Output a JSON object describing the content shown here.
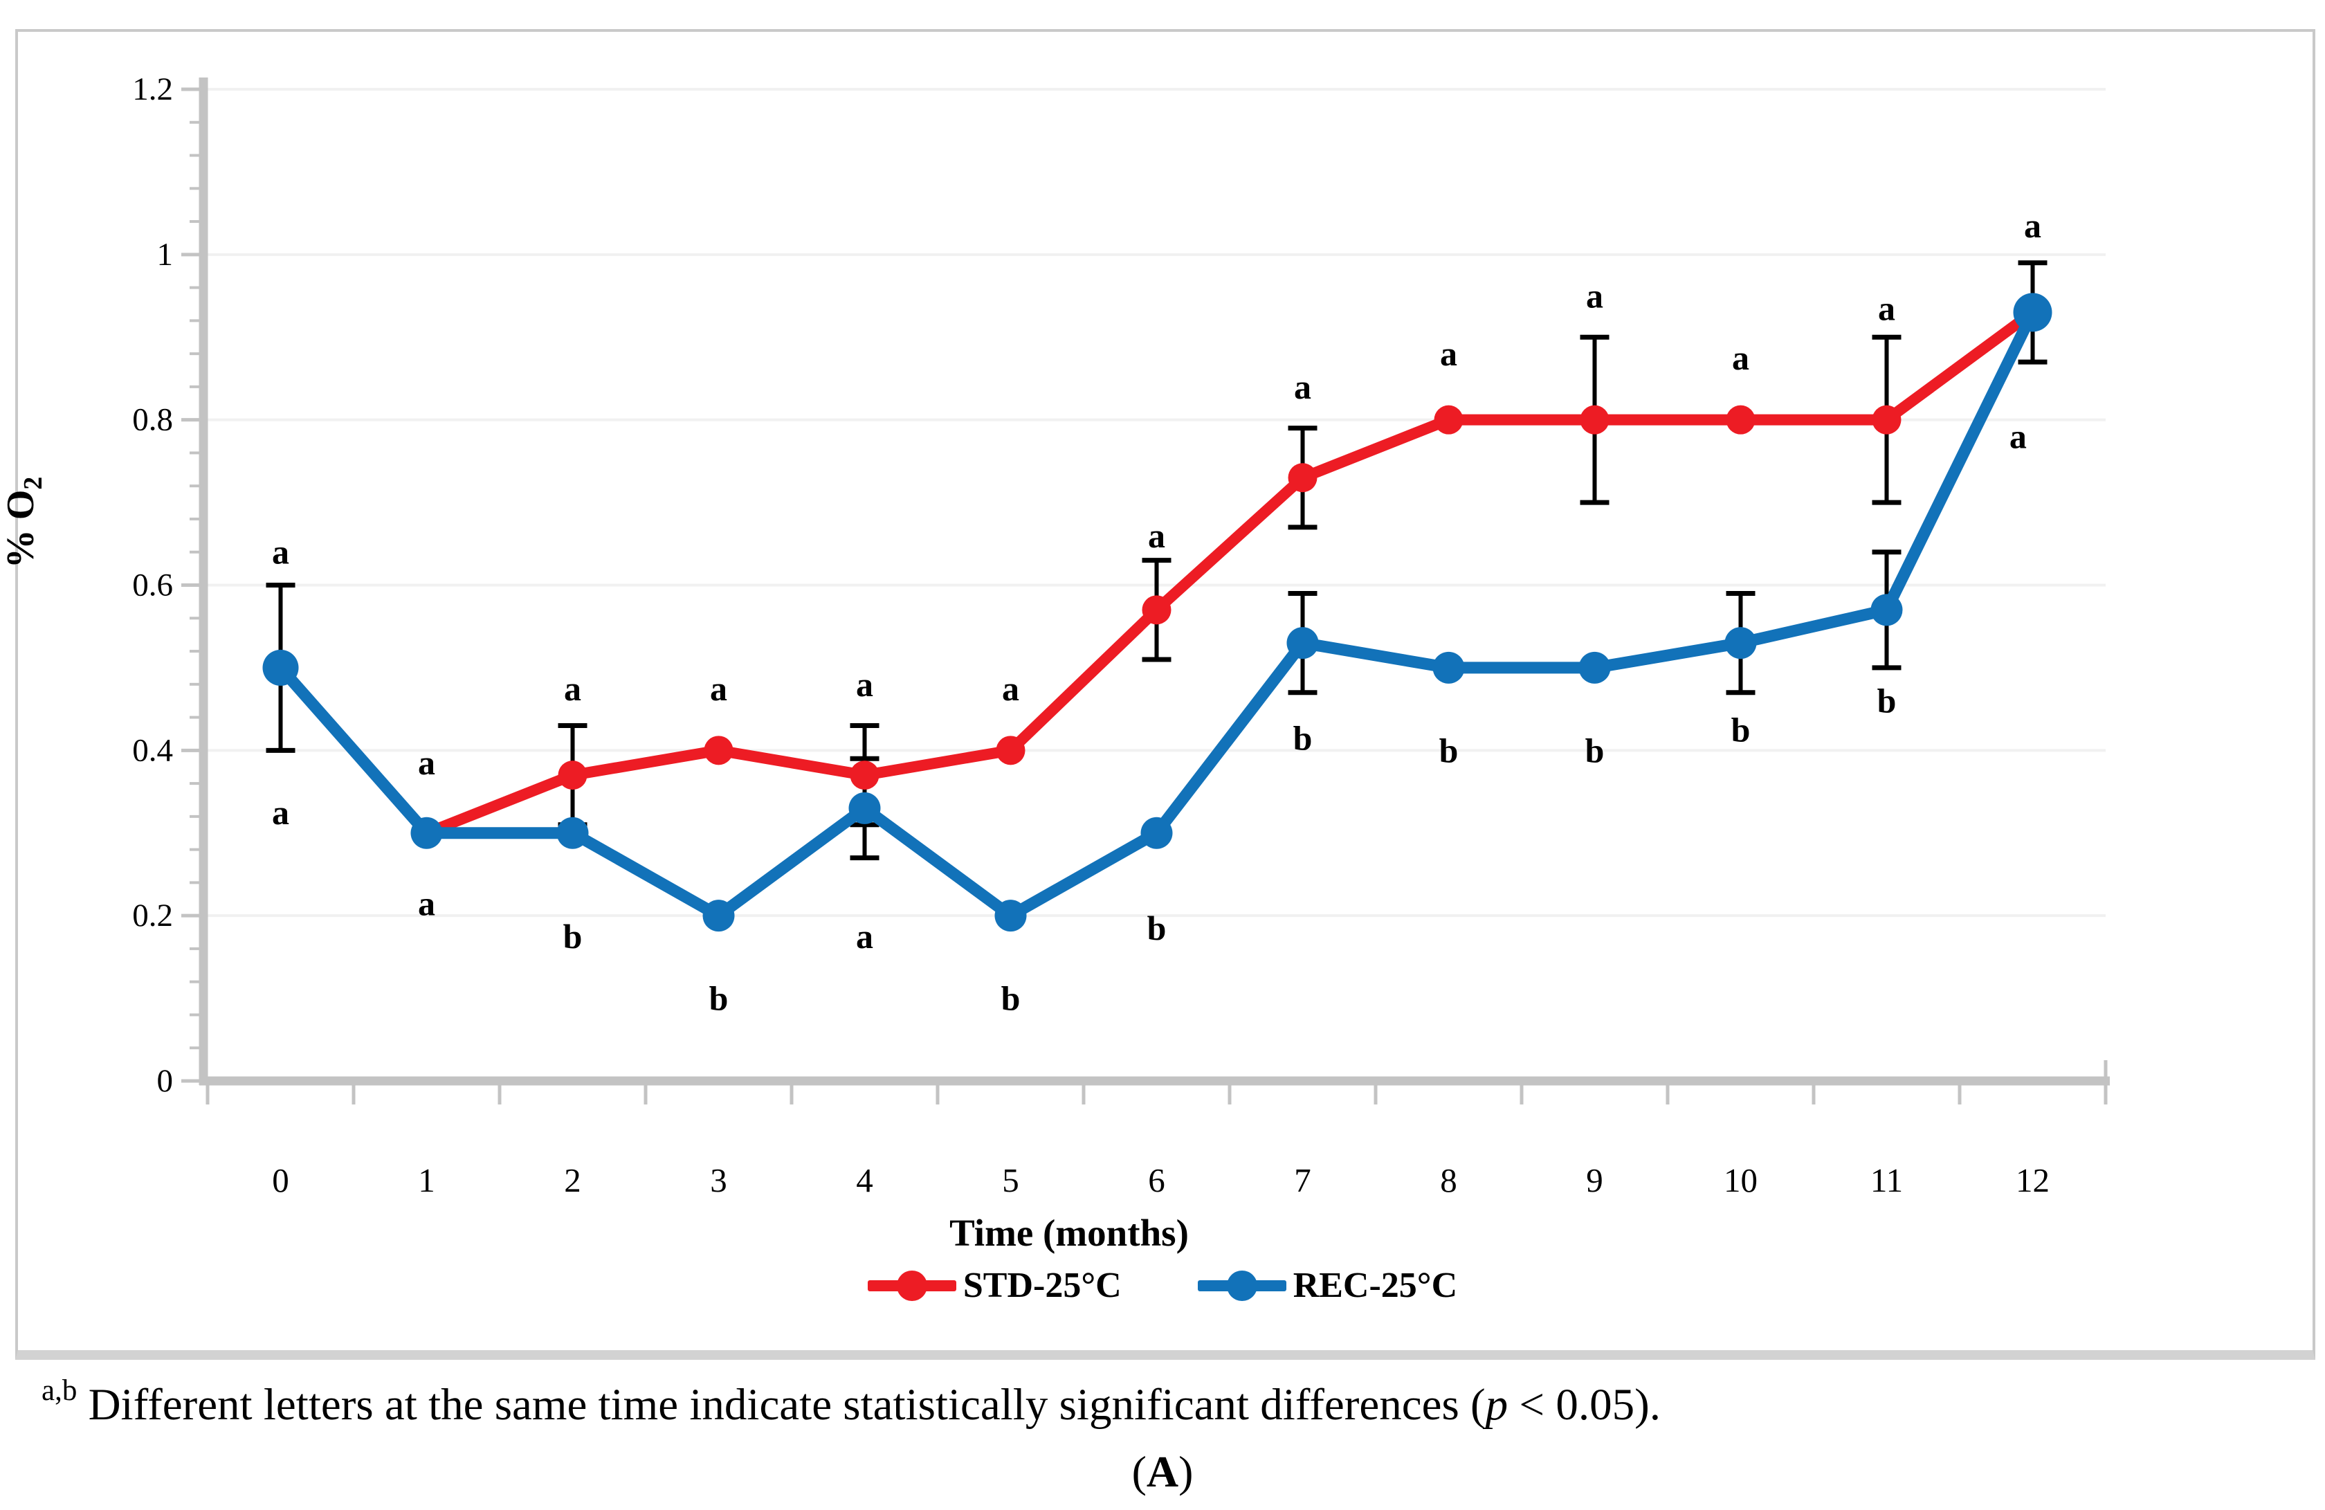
{
  "figure": {
    "caption": {
      "sup": "a,b",
      "body": " Different letters at the same time indicate statistically significant differences (",
      "pvar": "p",
      "tail": " < 0.05)."
    },
    "panel_label": {
      "open": "(",
      "letter": "A",
      "close": ")"
    }
  },
  "chart_data": {
    "type": "line",
    "title": "",
    "xlabel": "Time (months)",
    "ylabel": "% O2",
    "ylabel_main": "% O",
    "ylabel_sub": "2",
    "categories": [
      0,
      1,
      2,
      3,
      4,
      5,
      6,
      7,
      8,
      9,
      10,
      11,
      12
    ],
    "x_tick_labels": [
      "0",
      "1",
      "2",
      "3",
      "4",
      "5",
      "6",
      "7",
      "8",
      "9",
      "10",
      "11",
      "12"
    ],
    "y_ticks": [
      0,
      0.2,
      0.4,
      0.6,
      0.8,
      1,
      1.2
    ],
    "y_tick_labels": [
      "0",
      "0.2",
      "0.4",
      "0.6",
      "0.8",
      "1",
      "1.2"
    ],
    "ylim": [
      0,
      1.2
    ],
    "y_minor_step": 0.04,
    "grid": "horizontal",
    "legend_position": "bottom",
    "colors": {
      "grid": "#f1f1f1",
      "axis": "#c3c3c3",
      "error": "#000000"
    },
    "series": [
      {
        "name": "STD-25°C",
        "color": "#ed1c24",
        "marker_radius": 21,
        "line_width": 16,
        "points": [
          {
            "x": 1,
            "y": 0.3
          },
          {
            "x": 2,
            "y": 0.37
          },
          {
            "x": 3,
            "y": 0.4
          },
          {
            "x": 4,
            "y": 0.37
          },
          {
            "x": 5,
            "y": 0.4
          },
          {
            "x": 6,
            "y": 0.57
          },
          {
            "x": 7,
            "y": 0.73
          },
          {
            "x": 8,
            "y": 0.8
          },
          {
            "x": 9,
            "y": 0.8
          },
          {
            "x": 10,
            "y": 0.8
          },
          {
            "x": 11,
            "y": 0.8
          },
          {
            "x": 12,
            "y": 0.93
          }
        ],
        "error_bars": [
          {
            "x": 2,
            "lo": 0.31,
            "hi": 0.43
          },
          {
            "x": 4,
            "lo": 0.31,
            "hi": 0.43
          },
          {
            "x": 6,
            "lo": 0.51,
            "hi": 0.63
          },
          {
            "x": 7,
            "lo": 0.67,
            "hi": 0.79
          },
          {
            "x": 9,
            "lo": 0.7,
            "hi": 0.9
          },
          {
            "x": 11,
            "lo": 0.7,
            "hi": 0.9
          },
          {
            "x": 12,
            "lo": 0.87,
            "hi": 0.99
          }
        ]
      },
      {
        "name": "REC-25°C",
        "color": "#1272b9",
        "marker_radius": 23,
        "line_width": 17,
        "points": [
          {
            "x": 0,
            "y": 0.5,
            "r": 26
          },
          {
            "x": 1,
            "y": 0.3
          },
          {
            "x": 2,
            "y": 0.3
          },
          {
            "x": 3,
            "y": 0.2
          },
          {
            "x": 4,
            "y": 0.33
          },
          {
            "x": 5,
            "y": 0.2
          },
          {
            "x": 6,
            "y": 0.3
          },
          {
            "x": 7,
            "y": 0.53
          },
          {
            "x": 8,
            "y": 0.5
          },
          {
            "x": 9,
            "y": 0.5
          },
          {
            "x": 10,
            "y": 0.53
          },
          {
            "x": 11,
            "y": 0.57
          },
          {
            "x": 12,
            "y": 0.93,
            "r": 28
          }
        ],
        "error_bars": [
          {
            "x": 0,
            "lo": 0.4,
            "hi": 0.6
          },
          {
            "x": 4,
            "lo": 0.27,
            "hi": 0.39
          },
          {
            "x": 7,
            "lo": 0.47,
            "hi": 0.59
          },
          {
            "x": 10,
            "lo": 0.47,
            "hi": 0.59
          },
          {
            "x": 11,
            "lo": 0.5,
            "hi": 0.64
          }
        ]
      }
    ],
    "annotations": [
      {
        "x": 0,
        "y": 0.64,
        "text": "a"
      },
      {
        "x": 0,
        "y": 0.325,
        "text": "a"
      },
      {
        "x": 1,
        "y": 0.385,
        "text": "a"
      },
      {
        "x": 1,
        "y": 0.215,
        "text": "a"
      },
      {
        "x": 2,
        "y": 0.475,
        "text": "a"
      },
      {
        "x": 2,
        "y": 0.175,
        "text": "b"
      },
      {
        "x": 3,
        "y": 0.475,
        "text": "a"
      },
      {
        "x": 3,
        "y": 0.1,
        "text": "b"
      },
      {
        "x": 4,
        "y": 0.48,
        "text": "a"
      },
      {
        "x": 4,
        "y": 0.175,
        "text": "a"
      },
      {
        "x": 5,
        "y": 0.475,
        "text": "a"
      },
      {
        "x": 5,
        "y": 0.1,
        "text": "b"
      },
      {
        "x": 6,
        "y": 0.66,
        "text": "a"
      },
      {
        "x": 6,
        "y": 0.185,
        "text": "b"
      },
      {
        "x": 7,
        "y": 0.84,
        "text": "a"
      },
      {
        "x": 7,
        "y": 0.415,
        "text": "b"
      },
      {
        "x": 8,
        "y": 0.88,
        "text": "a"
      },
      {
        "x": 8,
        "y": 0.4,
        "text": "b"
      },
      {
        "x": 9,
        "y": 0.95,
        "text": "a"
      },
      {
        "x": 9,
        "y": 0.4,
        "text": "b"
      },
      {
        "x": 10,
        "y": 0.875,
        "text": "a"
      },
      {
        "x": 10,
        "y": 0.425,
        "text": "b"
      },
      {
        "x": 11,
        "y": 0.935,
        "text": "a"
      },
      {
        "x": 11,
        "y": 0.46,
        "text": "b"
      },
      {
        "x": 12,
        "y": 1.035,
        "text": "a"
      },
      {
        "x": 11.9,
        "y": 0.78,
        "text": "a"
      }
    ]
  }
}
